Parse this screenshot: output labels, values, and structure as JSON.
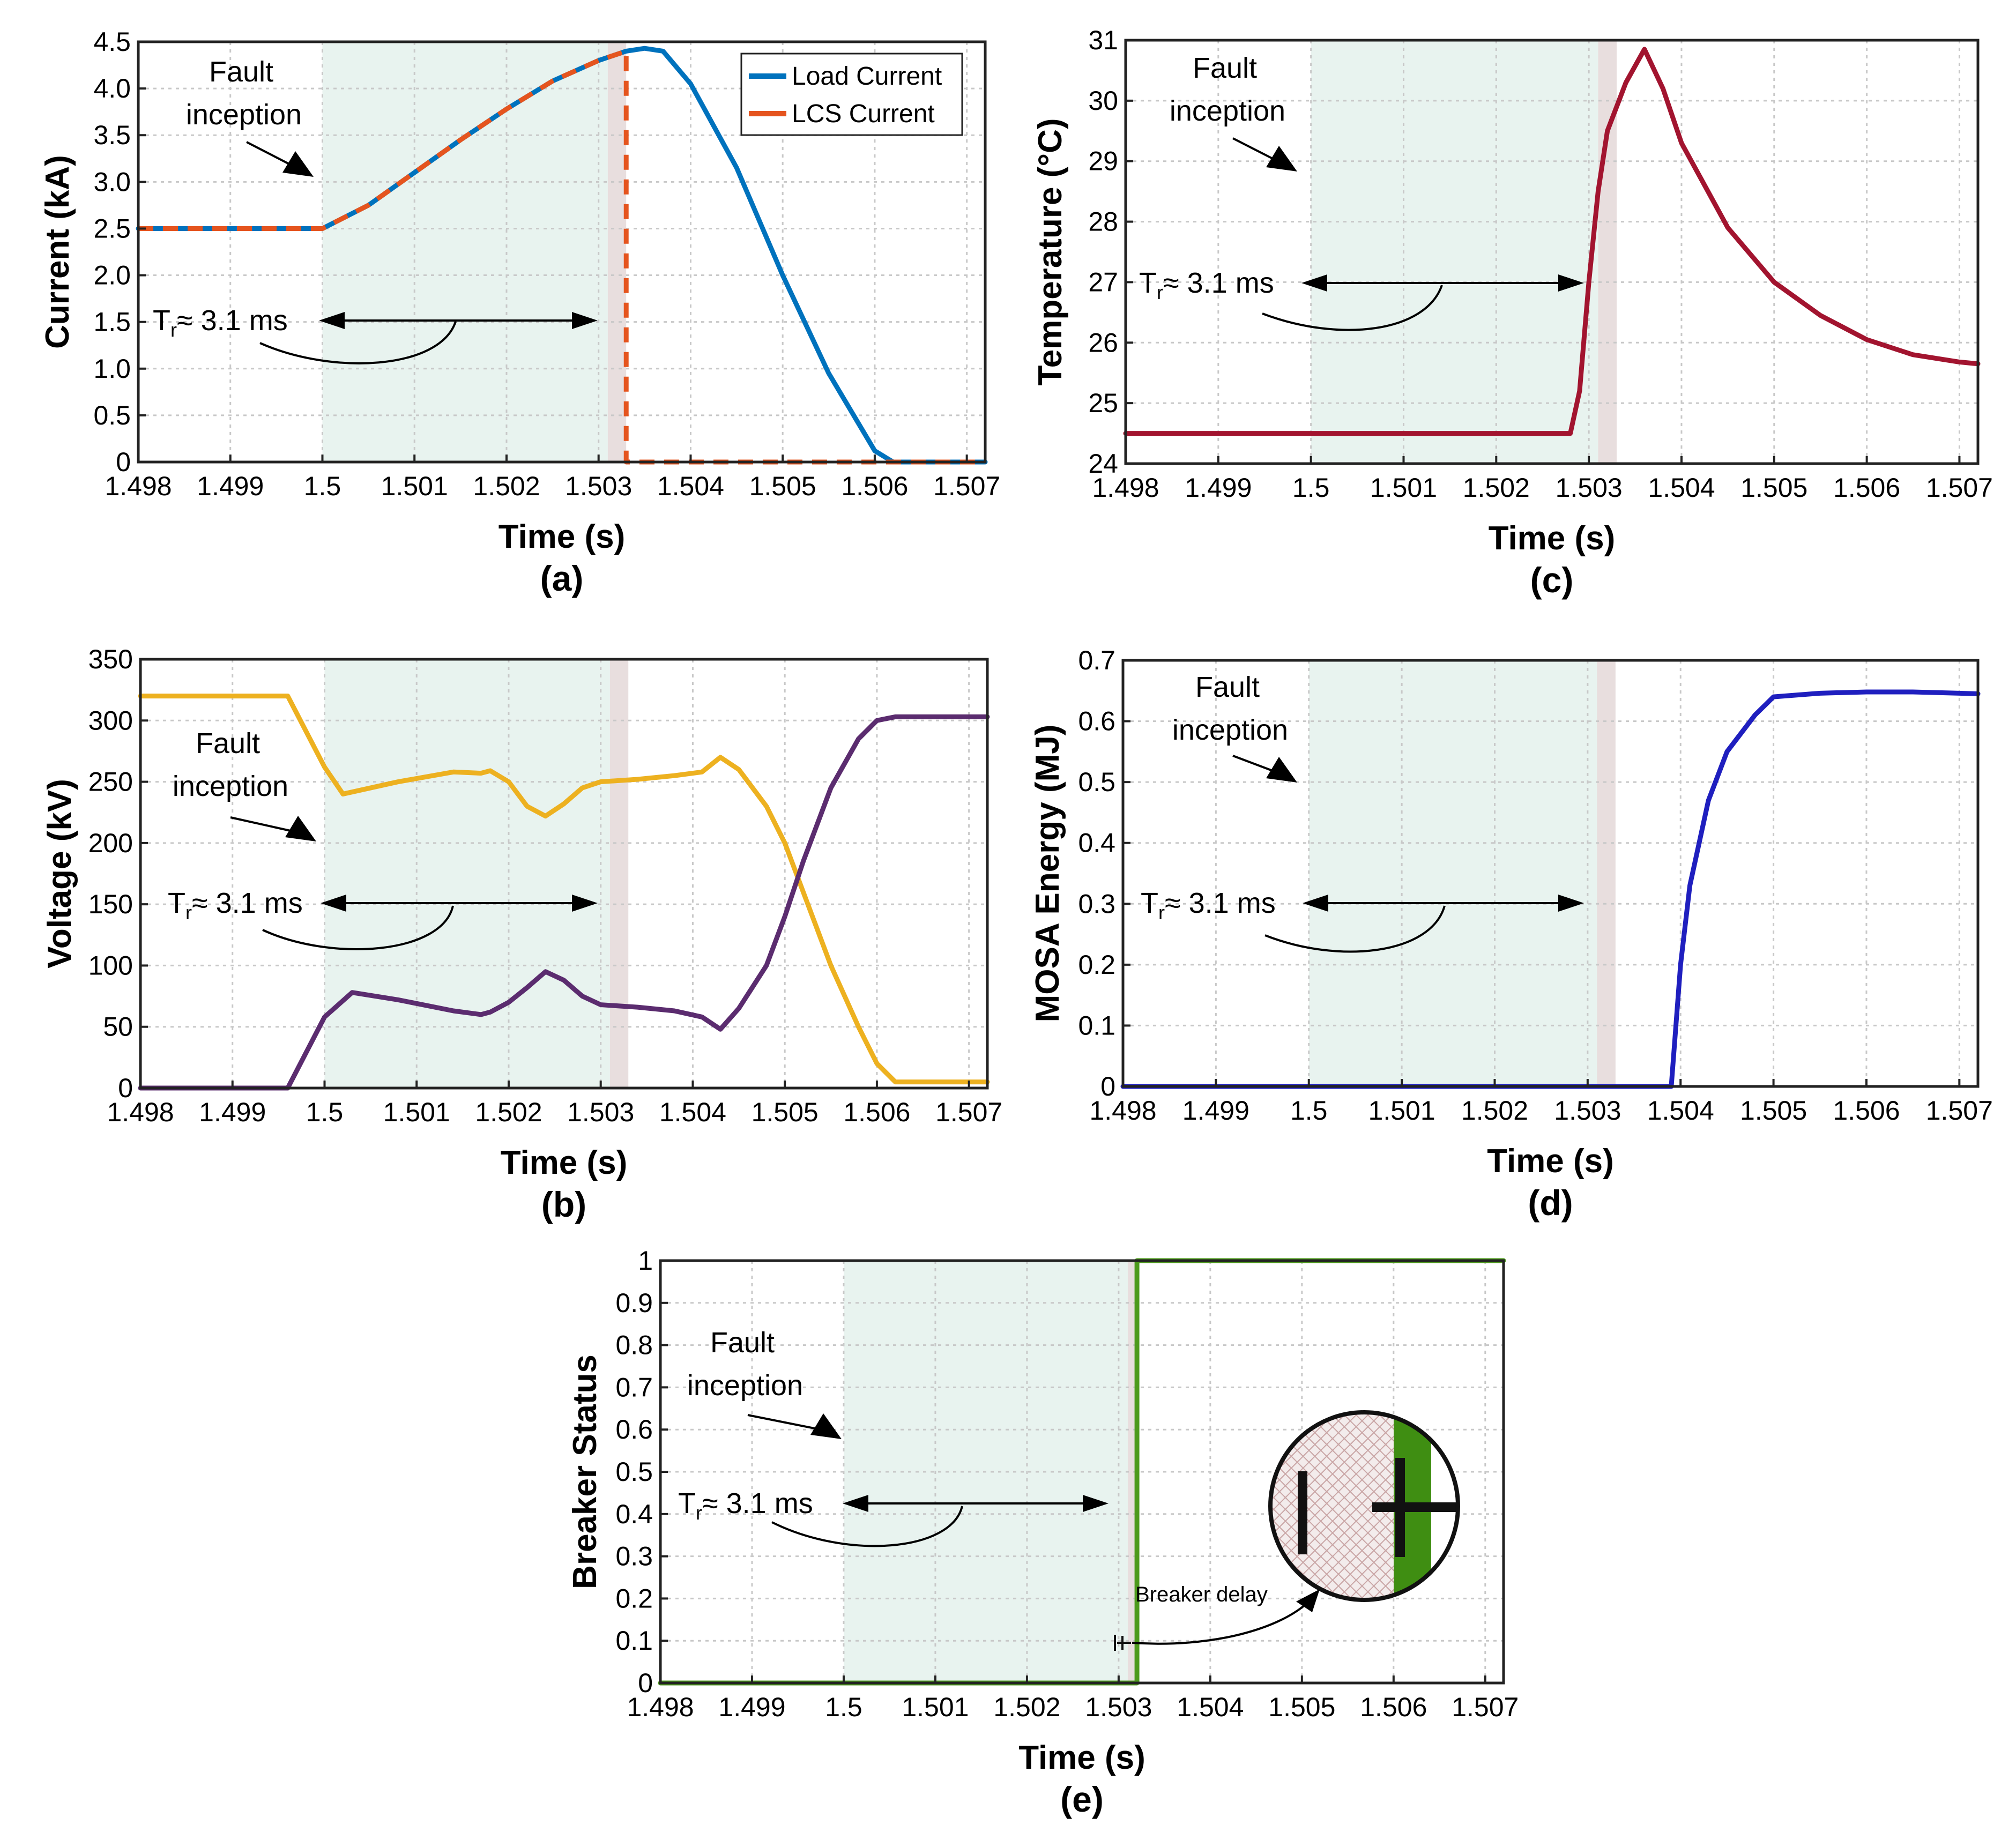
{
  "chart_data": [
    {
      "id": "a",
      "type": "line",
      "caption": "(a)",
      "xlabel": "Time (s)",
      "ylabel": "Current (kA)",
      "xlim": [
        1.498,
        1.5072
      ],
      "ylim": [
        0,
        4.5
      ],
      "xticks": [
        1.498,
        1.499,
        1.5,
        1.501,
        1.502,
        1.503,
        1.504,
        1.505,
        1.506,
        1.507
      ],
      "xtick_labels": [
        "1.498",
        "1.499",
        "1.5",
        "1.501",
        "1.502",
        "1.503",
        "1.504",
        "1.505",
        "1.506",
        "1.507"
      ],
      "yticks": [
        0,
        0.5,
        1,
        1.5,
        2,
        2.5,
        3,
        3.5,
        4,
        4.5
      ],
      "ytick_labels": [
        "0",
        "0.5",
        "1.0",
        "1.5",
        "2.0",
        "2.5",
        "3.0",
        "3.5",
        "4.0",
        "4.5"
      ],
      "grid": true,
      "shade": [
        1.5,
        1.5031
      ],
      "shade2": [
        1.5031,
        1.5033
      ],
      "legend": {
        "position": "top-right",
        "entries": [
          "Load Current",
          "LCS Current"
        ]
      },
      "series": [
        {
          "name": "Load Current",
          "color": "#0072BD",
          "dash": false,
          "x": [
            1.498,
            1.5,
            1.5005,
            1.501,
            1.5015,
            1.502,
            1.5025,
            1.503,
            1.5033,
            1.5035,
            1.5037,
            1.504,
            1.5045,
            1.505,
            1.5055,
            1.506,
            1.5062,
            1.507,
            1.5072
          ],
          "y": [
            2.5,
            2.5,
            2.75,
            3.1,
            3.45,
            3.78,
            4.08,
            4.3,
            4.4,
            4.43,
            4.4,
            4.05,
            3.15,
            2.0,
            0.95,
            0.12,
            0.0,
            0.0,
            0.0
          ]
        },
        {
          "name": "LCS Current",
          "color": "#E5541E",
          "dash": true,
          "x": [
            1.498,
            1.5,
            1.5005,
            1.501,
            1.5015,
            1.502,
            1.5025,
            1.503,
            1.5033,
            1.5033,
            1.5072
          ],
          "y": [
            2.5,
            2.5,
            2.75,
            3.1,
            3.45,
            3.78,
            4.08,
            4.3,
            4.4,
            0.0,
            0.0
          ]
        }
      ],
      "annotations": {
        "fault_line1": "Fault",
        "fault_line2": "inception",
        "tr_label": "T",
        "tr_sub": "r",
        "tr_value": "≈ 3.1 ms"
      }
    },
    {
      "id": "c",
      "type": "line",
      "caption": "(c)",
      "xlabel": "Time (s)",
      "ylabel": "Temperature (°C)",
      "xlim": [
        1.498,
        1.5072
      ],
      "ylim": [
        24,
        31
      ],
      "xticks": [
        1.498,
        1.499,
        1.5,
        1.501,
        1.502,
        1.503,
        1.504,
        1.505,
        1.506,
        1.507
      ],
      "xtick_labels": [
        "1.498",
        "1.499",
        "1.5",
        "1.501",
        "1.502",
        "1.503",
        "1.504",
        "1.505",
        "1.506",
        "1.507"
      ],
      "yticks": [
        24,
        25,
        26,
        27,
        28,
        29,
        30,
        31
      ],
      "ytick_labels": [
        "24",
        "25",
        "26",
        "27",
        "28",
        "29",
        "30",
        "31"
      ],
      "grid": true,
      "shade": [
        1.5,
        1.5031
      ],
      "shade2": [
        1.5031,
        1.5033
      ],
      "series": [
        {
          "name": "Temperature",
          "color": "#A2142F",
          "dash": false,
          "x": [
            1.498,
            1.5,
            1.5028,
            1.5029,
            1.503,
            1.5031,
            1.5032,
            1.5034,
            1.5036,
            1.5038,
            1.504,
            1.5045,
            1.505,
            1.5055,
            1.506,
            1.5065,
            1.507,
            1.5072
          ],
          "y": [
            24.5,
            24.5,
            24.5,
            25.2,
            27.0,
            28.5,
            29.5,
            30.3,
            30.85,
            30.2,
            29.3,
            27.9,
            27.0,
            26.45,
            26.05,
            25.8,
            25.68,
            25.65
          ]
        }
      ],
      "annotations": {
        "fault_line1": "Fault",
        "fault_line2": "inception",
        "tr_label": "T",
        "tr_sub": "r",
        "tr_value": "≈ 3.1 ms"
      }
    },
    {
      "id": "b",
      "type": "line",
      "caption": "(b)",
      "xlabel": "Time (s)",
      "ylabel": "Voltage (kV)",
      "xlim": [
        1.498,
        1.5072
      ],
      "ylim": [
        0,
        350
      ],
      "xticks": [
        1.498,
        1.499,
        1.5,
        1.501,
        1.502,
        1.503,
        1.504,
        1.505,
        1.506,
        1.507
      ],
      "xtick_labels": [
        "1.498",
        "1.499",
        "1.5",
        "1.501",
        "1.502",
        "1.503",
        "1.504",
        "1.505",
        "1.506",
        "1.507"
      ],
      "yticks": [
        0,
        50,
        100,
        150,
        200,
        250,
        300,
        350
      ],
      "ytick_labels": [
        "0",
        "50",
        "100",
        "150",
        "200",
        "250",
        "300",
        "350"
      ],
      "grid": true,
      "shade": [
        1.5,
        1.5031
      ],
      "shade2": [
        1.5031,
        1.5033
      ],
      "series": [
        {
          "name": "Voltage 1",
          "color": "#EDB120",
          "dash": false,
          "x": [
            1.498,
            1.4996,
            1.5,
            1.5002,
            1.5008,
            1.5014,
            1.5017,
            1.5018,
            1.502,
            1.5022,
            1.5024,
            1.5026,
            1.5028,
            1.503,
            1.5034,
            1.5038,
            1.5041,
            1.5043,
            1.5045,
            1.5048,
            1.505,
            1.5052,
            1.5055,
            1.5058,
            1.506,
            1.5062,
            1.5072
          ],
          "y": [
            320,
            320,
            262,
            240,
            250,
            258,
            257,
            259,
            250,
            230,
            222,
            232,
            245,
            250,
            252,
            255,
            258,
            270,
            260,
            230,
            200,
            160,
            100,
            50,
            20,
            5,
            5
          ]
        },
        {
          "name": "Voltage 2",
          "color": "#5B2C6F",
          "dash": false,
          "x": [
            1.498,
            1.4996,
            1.5,
            1.5003,
            1.5008,
            1.5014,
            1.5017,
            1.5018,
            1.502,
            1.5022,
            1.5024,
            1.5026,
            1.5028,
            1.503,
            1.5034,
            1.5038,
            1.5041,
            1.5043,
            1.5045,
            1.5048,
            1.505,
            1.5052,
            1.5055,
            1.5058,
            1.506,
            1.5062,
            1.5072
          ],
          "y": [
            0,
            0,
            58,
            78,
            72,
            63,
            60,
            62,
            70,
            82,
            95,
            88,
            75,
            68,
            66,
            63,
            58,
            48,
            65,
            100,
            140,
            185,
            245,
            285,
            300,
            303,
            303
          ]
        }
      ],
      "annotations": {
        "fault_line1": "Fault",
        "fault_line2": "inception",
        "tr_label": "T",
        "tr_sub": "r",
        "tr_value": "≈ 3.1 ms"
      }
    },
    {
      "id": "d",
      "type": "line",
      "caption": "(d)",
      "xlabel": "Time (s)",
      "ylabel": "MOSA Energy (MJ)",
      "xlim": [
        1.498,
        1.5072
      ],
      "ylim": [
        0,
        0.7
      ],
      "xticks": [
        1.498,
        1.499,
        1.5,
        1.501,
        1.502,
        1.503,
        1.504,
        1.505,
        1.506,
        1.507
      ],
      "xtick_labels": [
        "1.498",
        "1.499",
        "1.5",
        "1.501",
        "1.502",
        "1.503",
        "1.504",
        "1.505",
        "1.506",
        "1.507"
      ],
      "yticks": [
        0,
        0.1,
        0.2,
        0.3,
        0.4,
        0.5,
        0.6,
        0.7
      ],
      "ytick_labels": [
        "0",
        "0.1",
        "0.2",
        "0.3",
        "0.4",
        "0.5",
        "0.6",
        "0.7"
      ],
      "grid": true,
      "shade": [
        1.5,
        1.5031
      ],
      "shade2": [
        1.5031,
        1.5033
      ],
      "series": [
        {
          "name": "MOSA Energy",
          "color": "#1F1FBF",
          "dash": false,
          "x": [
            1.498,
            1.5039,
            1.50395,
            1.504,
            1.5041,
            1.5043,
            1.5045,
            1.5048,
            1.505,
            1.5055,
            1.506,
            1.5065,
            1.507,
            1.5072
          ],
          "y": [
            0,
            0,
            0.1,
            0.2,
            0.33,
            0.47,
            0.55,
            0.61,
            0.64,
            0.646,
            0.648,
            0.648,
            0.646,
            0.645
          ]
        }
      ],
      "annotations": {
        "fault_line1": "Fault",
        "fault_line2": "inception",
        "tr_label": "T",
        "tr_sub": "r",
        "tr_value": "≈ 3.1 ms"
      }
    },
    {
      "id": "e",
      "type": "line",
      "caption": "(e)",
      "xlabel": "Time (s)",
      "ylabel": "Breaker Status",
      "xlim": [
        1.498,
        1.5072
      ],
      "ylim": [
        0,
        1
      ],
      "xticks": [
        1.498,
        1.499,
        1.5,
        1.501,
        1.502,
        1.503,
        1.504,
        1.505,
        1.506,
        1.507
      ],
      "xtick_labels": [
        "1.498",
        "1.499",
        "1.5",
        "1.501",
        "1.502",
        "1.503",
        "1.504",
        "1.505",
        "1.506",
        "1.507"
      ],
      "yticks": [
        0,
        0.1,
        0.2,
        0.3,
        0.4,
        0.5,
        0.6,
        0.7,
        0.8,
        0.9,
        1
      ],
      "ytick_labels": [
        "0",
        "0.1",
        "0.2",
        "0.3",
        "0.4",
        "0.5",
        "0.6",
        "0.7",
        "0.8",
        "0.9",
        "1"
      ],
      "grid": true,
      "shade": [
        1.5,
        1.5031
      ],
      "shade2": [
        1.5031,
        1.5032
      ],
      "series": [
        {
          "name": "Breaker Status",
          "color": "#4D9A1C",
          "dash": false,
          "x": [
            1.498,
            1.5032,
            1.5032,
            1.5072
          ],
          "y": [
            0,
            0,
            1,
            1
          ]
        }
      ],
      "annotations": {
        "fault_line1": "Fault",
        "fault_line2": "inception",
        "tr_label": "T",
        "tr_sub": "r",
        "tr_value": "≈ 3.1 ms",
        "breaker_delay": "Breaker delay"
      }
    }
  ]
}
